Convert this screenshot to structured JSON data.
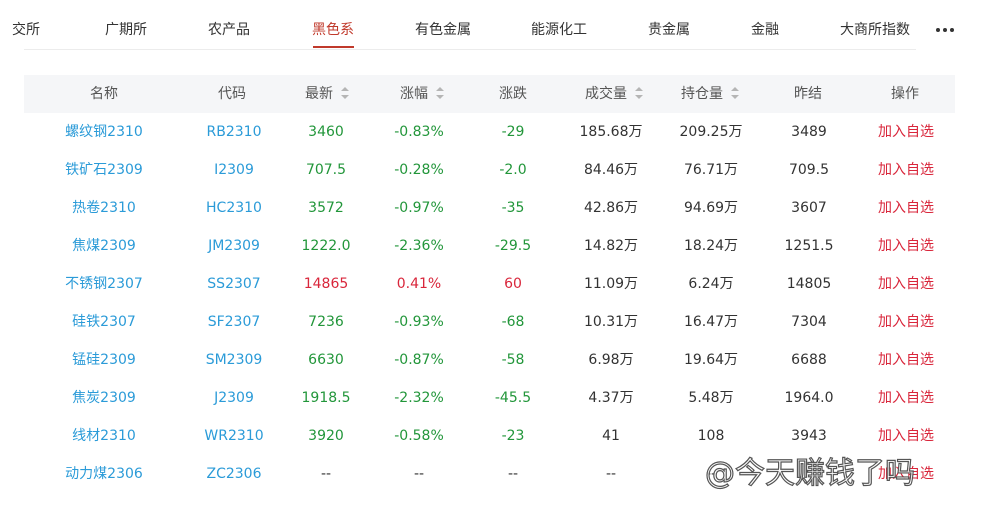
{
  "tabs": [
    {
      "label": "交所",
      "active": false
    },
    {
      "label": "广期所",
      "active": false
    },
    {
      "label": "农产品",
      "active": false
    },
    {
      "label": "黑色系",
      "active": true
    },
    {
      "label": "有色金属",
      "active": false
    },
    {
      "label": "能源化工",
      "active": false
    },
    {
      "label": "贵金属",
      "active": false
    },
    {
      "label": "金融",
      "active": false
    },
    {
      "label": "大商所指数",
      "active": false
    }
  ],
  "more_icon": "ellipsis-icon",
  "columns": [
    {
      "label": "名称",
      "sortable": false
    },
    {
      "label": "代码",
      "sortable": false
    },
    {
      "label": "最新",
      "sortable": true
    },
    {
      "label": "涨幅",
      "sortable": true
    },
    {
      "label": "涨跌",
      "sortable": false
    },
    {
      "label": "成交量",
      "sortable": true
    },
    {
      "label": "持仓量",
      "sortable": true
    },
    {
      "label": "昨结",
      "sortable": false
    },
    {
      "label": "操作",
      "sortable": false
    }
  ],
  "rows": [
    {
      "name": "螺纹钢2310",
      "code": "RB2310",
      "last": "3460",
      "pct": "-0.83%",
      "change": "-29",
      "volume": "185.68万",
      "oi": "209.25万",
      "prev": "3489",
      "action": "加入自选",
      "trend": "down"
    },
    {
      "name": "铁矿石2309",
      "code": "I2309",
      "last": "707.5",
      "pct": "-0.28%",
      "change": "-2.0",
      "volume": "84.46万",
      "oi": "76.71万",
      "prev": "709.5",
      "action": "加入自选",
      "trend": "down"
    },
    {
      "name": "热卷2310",
      "code": "HC2310",
      "last": "3572",
      "pct": "-0.97%",
      "change": "-35",
      "volume": "42.86万",
      "oi": "94.69万",
      "prev": "3607",
      "action": "加入自选",
      "trend": "down"
    },
    {
      "name": "焦煤2309",
      "code": "JM2309",
      "last": "1222.0",
      "pct": "-2.36%",
      "change": "-29.5",
      "volume": "14.82万",
      "oi": "18.24万",
      "prev": "1251.5",
      "action": "加入自选",
      "trend": "down"
    },
    {
      "name": "不锈钢2307",
      "code": "SS2307",
      "last": "14865",
      "pct": "0.41%",
      "change": "60",
      "volume": "11.09万",
      "oi": "6.24万",
      "prev": "14805",
      "action": "加入自选",
      "trend": "up"
    },
    {
      "name": "硅铁2307",
      "code": "SF2307",
      "last": "7236",
      "pct": "-0.93%",
      "change": "-68",
      "volume": "10.31万",
      "oi": "16.47万",
      "prev": "7304",
      "action": "加入自选",
      "trend": "down"
    },
    {
      "name": "锰硅2309",
      "code": "SM2309",
      "last": "6630",
      "pct": "-0.87%",
      "change": "-58",
      "volume": "6.98万",
      "oi": "19.64万",
      "prev": "6688",
      "action": "加入自选",
      "trend": "down"
    },
    {
      "name": "焦炭2309",
      "code": "J2309",
      "last": "1918.5",
      "pct": "-2.32%",
      "change": "-45.5",
      "volume": "4.37万",
      "oi": "5.48万",
      "prev": "1964.0",
      "action": "加入自选",
      "trend": "down"
    },
    {
      "name": "线材2310",
      "code": "WR2310",
      "last": "3920",
      "pct": "-0.58%",
      "change": "-23",
      "volume": "41",
      "oi": "108",
      "prev": "3943",
      "action": "加入自选",
      "trend": "down"
    },
    {
      "name": "动力煤2306",
      "code": "ZC2306",
      "last": "--",
      "pct": "--",
      "change": "--",
      "volume": "--",
      "oi": "--",
      "prev": "",
      "action": "加入自选",
      "trend": "flat"
    }
  ],
  "watermark": "@今天赚钱了吗",
  "colors": {
    "up": "#d9263b",
    "down": "#22963a",
    "link": "#2b9bd8",
    "accent": "#c0392b"
  }
}
